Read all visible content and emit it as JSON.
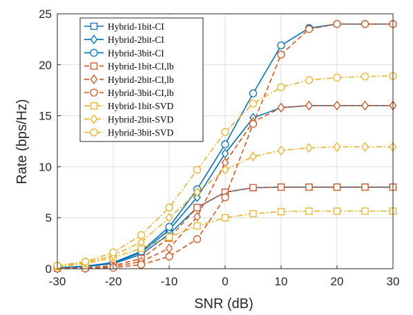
{
  "chart_data": {
    "type": "line",
    "xlabel": "SNR (dB)",
    "ylabel": "Rate (bps/Hz)",
    "xlim": [
      -30,
      30
    ],
    "ylim": [
      0,
      25
    ],
    "x_ticks": [
      -30,
      -20,
      -10,
      0,
      10,
      20,
      30
    ],
    "y_ticks": [
      0,
      5,
      10,
      15,
      20,
      25
    ],
    "grid": true,
    "legend_position": "top-left",
    "x": [
      -30,
      -25,
      -20,
      -15,
      -10,
      -5,
      0,
      5,
      10,
      15,
      20,
      25,
      30
    ],
    "series": [
      {
        "name": "Hybrid-1bit-CI",
        "color": "#0072BD",
        "dash": "solid",
        "marker": "square",
        "values": [
          0.1,
          0.2,
          0.5,
          1.4,
          3.4,
          6.0,
          7.5,
          7.95,
          8.0,
          8.0,
          8.0,
          8.0,
          8.0
        ]
      },
      {
        "name": "Hybrid-2bit-CI",
        "color": "#0072BD",
        "dash": "solid",
        "marker": "diamond",
        "values": [
          0.1,
          0.2,
          0.55,
          1.6,
          3.8,
          7.0,
          11.3,
          14.8,
          15.8,
          16.0,
          16.0,
          16.0,
          16.0
        ]
      },
      {
        "name": "Hybrid-3bit-CI",
        "color": "#0072BD",
        "dash": "solid",
        "marker": "circle",
        "values": [
          0.1,
          0.25,
          0.6,
          1.7,
          4.1,
          7.8,
          12.2,
          17.2,
          21.9,
          23.6,
          24.0,
          24.0,
          24.0
        ]
      },
      {
        "name": "Hybrid-1bit-CI,lb",
        "color": "#D95319",
        "dash": "dashed",
        "marker": "square",
        "values": [
          0.05,
          0.1,
          0.3,
          1.0,
          3.0,
          6.0,
          7.5,
          7.95,
          8.0,
          8.0,
          8.0,
          8.0,
          8.0
        ]
      },
      {
        "name": "Hybrid-2bit-CI,lb",
        "color": "#D95319",
        "dash": "dashed",
        "marker": "diamond",
        "values": [
          0.02,
          0.05,
          0.2,
          0.7,
          2.0,
          5.1,
          10.4,
          14.4,
          15.8,
          16.0,
          16.0,
          16.0,
          16.0
        ]
      },
      {
        "name": "Hybrid-3bit-CI,lb",
        "color": "#D95319",
        "dash": "dashed",
        "marker": "circle",
        "values": [
          0.01,
          0.03,
          0.1,
          0.4,
          1.2,
          2.9,
          7.0,
          14.2,
          21.0,
          23.5,
          24.0,
          24.0,
          24.0
        ]
      },
      {
        "name": "Hybrid-1bit-SVD",
        "color": "#EDB120",
        "dash": "dashdot",
        "marker": "square",
        "values": [
          0.2,
          0.5,
          1.1,
          2.0,
          3.1,
          4.2,
          5.0,
          5.4,
          5.6,
          5.65,
          5.65,
          5.65,
          5.65
        ]
      },
      {
        "name": "Hybrid-2bit-SVD",
        "color": "#EDB120",
        "dash": "dashdot",
        "marker": "diamond",
        "values": [
          0.25,
          0.6,
          1.3,
          2.6,
          5.0,
          7.5,
          9.7,
          11.0,
          11.6,
          11.85,
          11.95,
          11.95,
          11.95
        ]
      },
      {
        "name": "Hybrid-3bit-SVD",
        "color": "#EDB120",
        "dash": "dashdot",
        "marker": "circle",
        "values": [
          0.3,
          0.7,
          1.6,
          3.3,
          6.0,
          9.7,
          13.4,
          16.2,
          17.8,
          18.5,
          18.75,
          18.85,
          18.9
        ]
      }
    ]
  }
}
